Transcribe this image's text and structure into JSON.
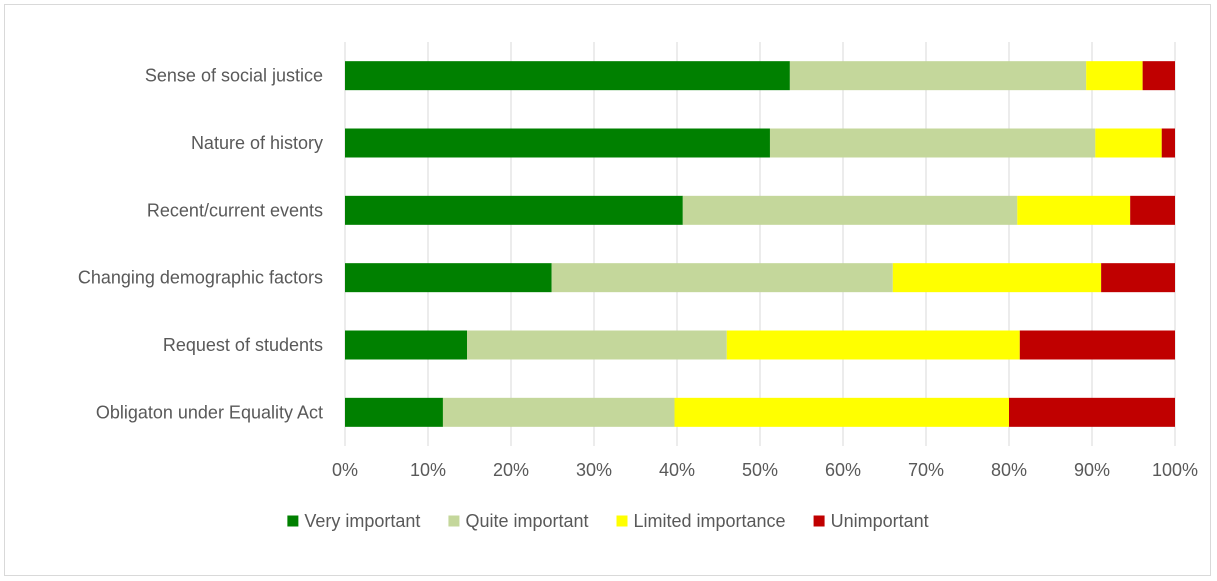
{
  "chart_data": {
    "type": "bar",
    "orientation": "horizontal",
    "stacked": "percent",
    "categories": [
      "Sense of social justice",
      "Nature of history",
      "Recent/current events",
      "Changing demographic factors",
      "Request of students",
      "Obligaton under Equality Act"
    ],
    "series": [
      {
        "name": "Very important",
        "color": "#008000",
        "values": [
          53.6,
          51.2,
          40.7,
          24.9,
          14.7,
          11.8
        ]
      },
      {
        "name": "Quite important",
        "color": "#c4d79b",
        "values": [
          35.7,
          39.2,
          40.3,
          41.1,
          31.3,
          27.9
        ]
      },
      {
        "name": "Limited importance",
        "color": "#ffff00",
        "values": [
          6.8,
          8.0,
          13.6,
          25.1,
          35.3,
          40.3
        ]
      },
      {
        "name": "Unimportant",
        "color": "#c00000",
        "values": [
          3.9,
          1.6,
          5.4,
          8.9,
          18.7,
          20.0
        ]
      }
    ],
    "xlim": [
      0,
      100
    ],
    "x_ticks": [
      "0%",
      "10%",
      "20%",
      "30%",
      "40%",
      "50%",
      "60%",
      "70%",
      "80%",
      "90%",
      "100%"
    ],
    "grid": "vertical",
    "legend_position": "bottom",
    "title": "",
    "xlabel": "",
    "ylabel": ""
  }
}
